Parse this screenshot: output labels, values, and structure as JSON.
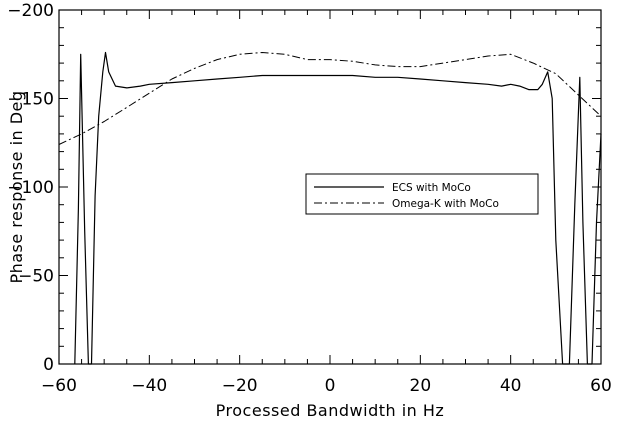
{
  "chart_data": {
    "type": "line",
    "title": "",
    "xlabel": "Processed Bandwidth in Hz",
    "ylabel": "Phase response in Deg",
    "xlim": [
      -60,
      60
    ],
    "ylim": [
      0,
      -200
    ],
    "y_axis_reversed": true,
    "x_ticks": [
      -60,
      -40,
      -20,
      0,
      20,
      40,
      60
    ],
    "y_ticks": [
      0,
      -50,
      -100,
      -150,
      -200
    ],
    "x_tick_labels": [
      "−60",
      "−40",
      "−20",
      "0",
      "20",
      "40",
      "60"
    ],
    "y_tick_labels": [
      "0",
      "−50",
      "−100",
      "−150",
      "−200"
    ],
    "grid": false,
    "legend_position": "center-right",
    "series": [
      {
        "name": "ECS with MoCo",
        "line_style": "solid",
        "color": "#000000",
        "x": [
          -56.5,
          -55.7,
          -55.2,
          -54.3,
          -53.5,
          -52.8,
          -52,
          -51.2,
          -50.3,
          -49.7,
          -49,
          -47.5,
          -45,
          -42,
          -40,
          -35,
          -30,
          -25,
          -20,
          -15,
          -10,
          -5,
          0,
          5,
          10,
          15,
          20,
          25,
          30,
          35,
          38,
          40,
          42,
          44,
          46,
          47,
          48.2,
          49.2,
          50,
          51.5,
          53,
          54.2,
          55.3,
          56,
          57,
          58,
          59,
          60
        ],
        "y": [
          0,
          -88,
          -175,
          -75,
          0,
          0,
          -95,
          -140,
          -165,
          -176,
          -165,
          -157,
          -156,
          -157,
          -158,
          -159,
          -160,
          -161,
          -162,
          -163,
          -163,
          -163,
          -163,
          -163,
          -162,
          -162,
          -161,
          -160,
          -159,
          -158,
          -157,
          -158,
          -157,
          -155,
          -155,
          -158,
          -165,
          -150,
          -70,
          0,
          0,
          -90,
          -162,
          -80,
          0,
          0,
          -80,
          -130
        ]
      },
      {
        "name": "Omega-K with MoCo",
        "line_style": "dash-dot",
        "color": "#000000",
        "x": [
          -60,
          -55,
          -50,
          -45,
          -40,
          -35,
          -30,
          -25,
          -20,
          -15,
          -10,
          -5,
          0,
          5,
          10,
          15,
          20,
          25,
          30,
          35,
          40,
          45,
          50,
          55,
          60
        ],
        "y": [
          -124,
          -130,
          -137,
          -145,
          -153,
          -161,
          -167,
          -172,
          -175,
          -176,
          -175,
          -172,
          -172,
          -171,
          -169,
          -168,
          -168,
          -170,
          -172,
          -174,
          -175,
          -170,
          -164,
          -152,
          -140
        ]
      }
    ]
  }
}
